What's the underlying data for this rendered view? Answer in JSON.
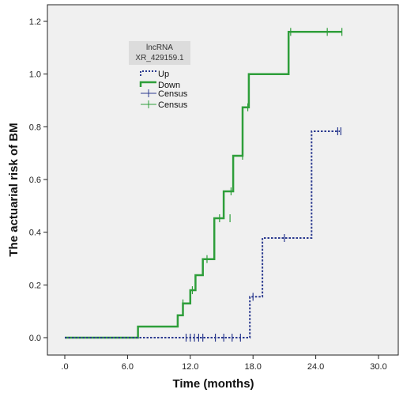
{
  "chart_data": {
    "type": "line",
    "xlabel": "Time (months)",
    "ylabel": "The actuarial risk of BM",
    "xlim": [
      0,
      30
    ],
    "ylim": [
      0,
      1.2
    ],
    "x_ticks": [
      ".0",
      "6.0",
      "12.0",
      "18.0",
      "24.0",
      "30.0"
    ],
    "x_tick_values": [
      0,
      6,
      12,
      18,
      24,
      30
    ],
    "y_ticks": [
      "0.0",
      "0.2",
      "0.4",
      "0.6",
      "0.8",
      "1.0",
      "1.2"
    ],
    "y_tick_values": [
      0,
      0.2,
      0.4,
      0.6,
      0.8,
      1.0,
      1.2
    ],
    "grid": false,
    "legend": {
      "title_line1": "lncRNA",
      "title_line2": "XR_429159.1",
      "position": "top-left",
      "entries": [
        "Up",
        "Down",
        "Census",
        "Census"
      ]
    },
    "series": [
      {
        "name": "Up",
        "style": "dotted-step",
        "color": "#2b3a8f",
        "x": [
          0,
          17.7,
          17.7,
          18.9,
          18.9,
          23.6,
          23.6,
          26.3
        ],
        "y": [
          0,
          0,
          0.155,
          0.155,
          0.378,
          0.378,
          0.783,
          0.783
        ],
        "censored_x": [
          11.6,
          12.0,
          12.4,
          12.8,
          13.2,
          14.4,
          15.2,
          16.0,
          16.8,
          18.0,
          21.0,
          26.1,
          26.4
        ],
        "censored_y": [
          0,
          0,
          0,
          0,
          0,
          0,
          0,
          0,
          0,
          0.155,
          0.378,
          0.783,
          0.783
        ]
      },
      {
        "name": "Down",
        "style": "solid-step",
        "color": "#2e9e3a",
        "x": [
          0,
          7.0,
          7.0,
          10.8,
          10.8,
          11.3,
          11.3,
          12.0,
          12.0,
          12.5,
          12.5,
          13.2,
          13.2,
          14.3,
          14.3,
          15.2,
          15.2,
          16.1,
          16.1,
          17.0,
          17.0,
          17.6,
          17.6,
          21.4,
          21.4,
          26.5
        ],
        "y": [
          0,
          0,
          0.042,
          0.042,
          0.085,
          0.085,
          0.13,
          0.13,
          0.18,
          0.18,
          0.237,
          0.237,
          0.298,
          0.298,
          0.453,
          0.453,
          0.555,
          0.555,
          0.69,
          0.69,
          0.874,
          0.874,
          1.0,
          1.0,
          1.16,
          1.16
        ],
        "censored_x": [
          11.3,
          12.2,
          13.6,
          14.8,
          15.8,
          15.9,
          17.0,
          17.5,
          21.6,
          25.1,
          26.5
        ],
        "censored_y": [
          0.13,
          0.18,
          0.298,
          0.453,
          0.453,
          0.555,
          0.69,
          0.874,
          1.16,
          1.16,
          1.16
        ]
      }
    ]
  }
}
